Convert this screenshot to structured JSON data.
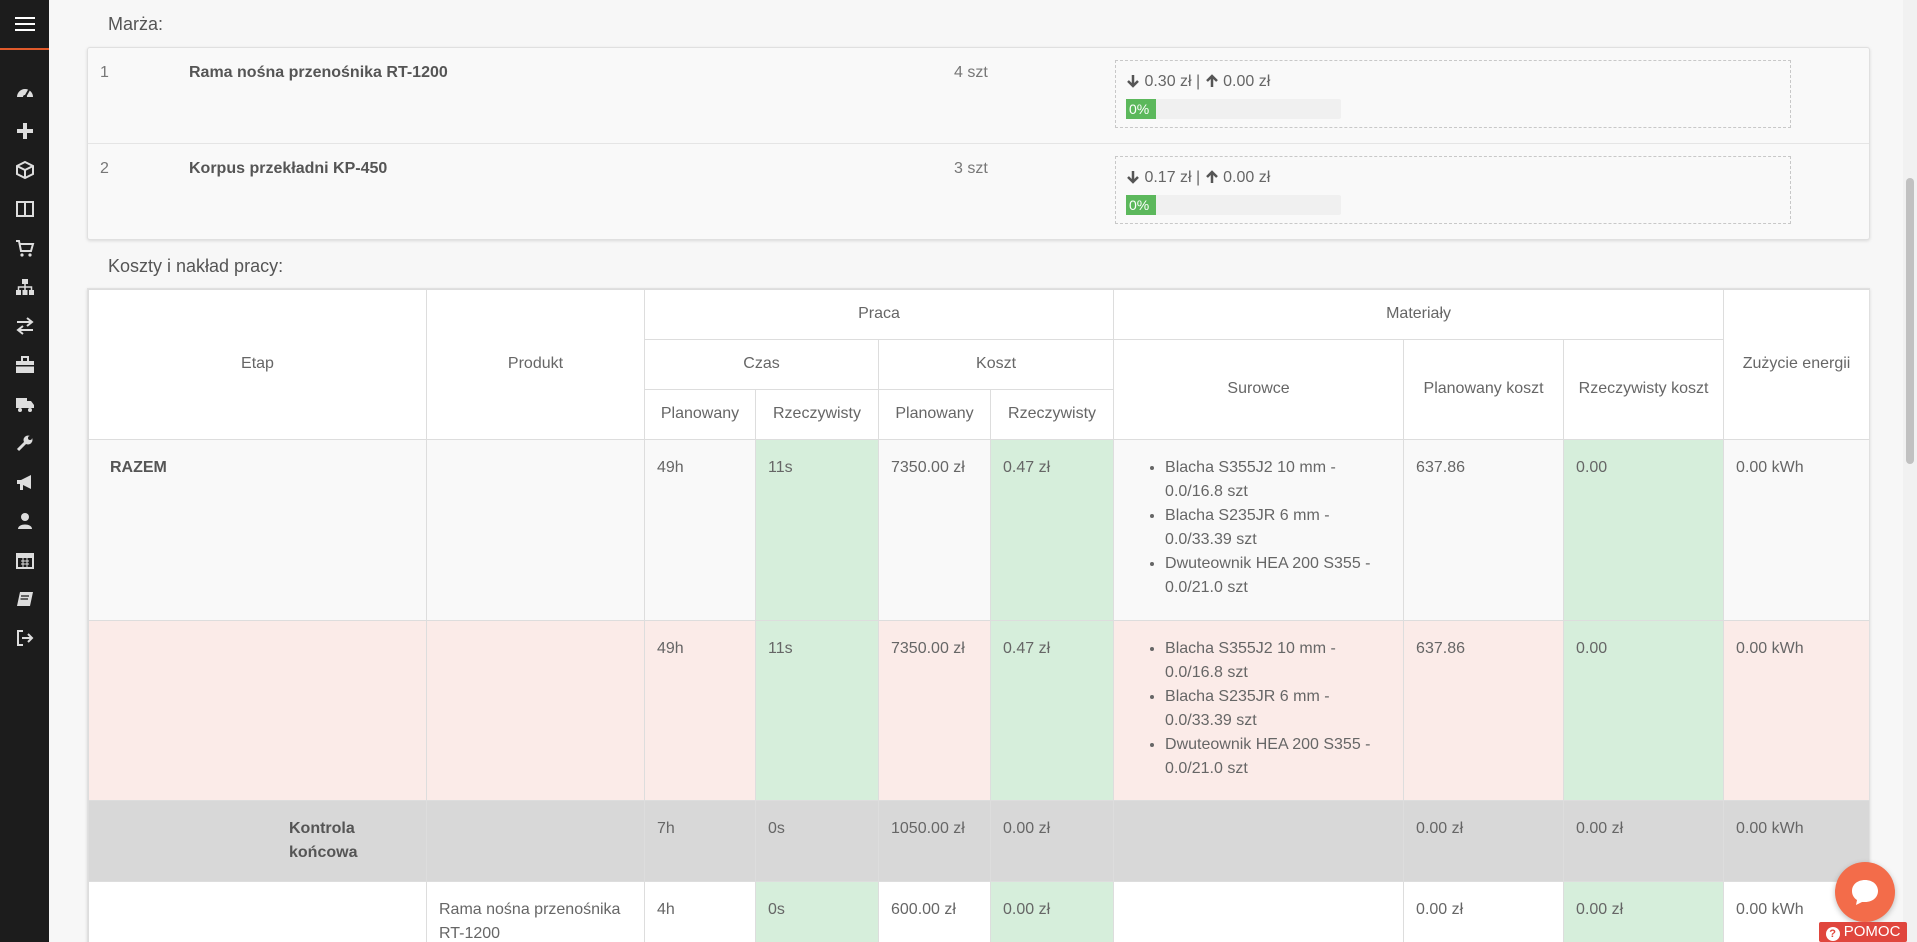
{
  "sidebar": {
    "menu_icon": "hamburger-menu-icon",
    "icons": [
      "dashboard-icon",
      "plus-icon",
      "cube-icon",
      "columns-icon",
      "shopping-cart-icon",
      "sitemap-icon",
      "exchange-icon",
      "briefcase-icon",
      "truck-icon",
      "wrench-icon",
      "bullhorn-icon",
      "user-icon",
      "calendar-icon",
      "book-icon",
      "sign-out-icon"
    ],
    "accent_color": "#e05a2b"
  },
  "margin": {
    "title": "Marża:",
    "rows": [
      {
        "num": "1",
        "name": "Rama nośna przenośnika RT-1200",
        "qty": "4 szt",
        "down": "0.30 zł",
        "sep": "|",
        "up": "0.00 zł",
        "progress_label": "0%",
        "progress_value": 0
      },
      {
        "num": "2",
        "name": "Korpus przekładni KP-450",
        "qty": "3 szt",
        "down": "0.17 zł",
        "sep": "|",
        "up": "0.00 zł",
        "progress_label": "0%",
        "progress_value": 0
      }
    ]
  },
  "costs": {
    "title": "Koszty i nakład pracy:",
    "headers": {
      "etap": "Etap",
      "produkt": "Produkt",
      "praca": "Praca",
      "materialy": "Materiały",
      "energia": "Zużycie energii",
      "czas": "Czas",
      "koszt": "Koszt",
      "planowany": "Planowany",
      "rzeczywisty": "Rzeczywisty",
      "surowce": "Surowce",
      "planowany_koszt": "Planowany koszt",
      "rzeczywisty_koszt": "Rzeczywisty koszt"
    },
    "rows": [
      {
        "etap": "RAZEM",
        "produkt": "",
        "czas_plan": "49h",
        "czas_rz": "11s",
        "koszt_plan": "7350.00 zł",
        "koszt_rz": "0.47 zł",
        "surowce": [
          "Blacha S355J2 10 mm - 0.0/16.8 szt",
          "Blacha S235JR 6 mm - 0.0/33.39 szt",
          "Dwuteownik HEA 200 S355 - 0.0/21.0 szt"
        ],
        "pl_koszt": "637.86",
        "rz_koszt": "0.00",
        "energia": "0.00 kWh"
      },
      {
        "etap": "",
        "produkt": "",
        "czas_plan": "49h",
        "czas_rz": "11s",
        "koszt_plan": "7350.00 zł",
        "koszt_rz": "0.47 zł",
        "surowce": [
          "Blacha S355J2 10 mm - 0.0/16.8 szt",
          "Blacha S235JR 6 mm - 0.0/33.39 szt",
          "Dwuteownik HEA 200 S355 - 0.0/21.0 szt"
        ],
        "pl_koszt": "637.86",
        "rz_koszt": "0.00",
        "energia": "0.00 kWh"
      },
      {
        "etap": "Kontrola końcowa",
        "produkt": "",
        "czas_plan": "7h",
        "czas_rz": "0s",
        "koszt_plan": "1050.00 zł",
        "koszt_rz": "0.00 zł",
        "pl_koszt": "0.00 zł",
        "rz_koszt": "0.00 zł",
        "energia": "0.00 kWh"
      },
      {
        "etap": "",
        "produkt": "Rama nośna przenośnika RT-1200",
        "czas_plan": "4h",
        "czas_rz": "0s",
        "koszt_plan": "600.00 zł",
        "koszt_rz": "0.00 zł",
        "pl_koszt": "0.00 zł",
        "rz_koszt": "0.00 zł",
        "energia": "0.00 kWh"
      }
    ]
  },
  "help": {
    "label": "POMOC",
    "chat_icon": "chat-bubble-icon",
    "help_icon": "question-circle-icon"
  }
}
